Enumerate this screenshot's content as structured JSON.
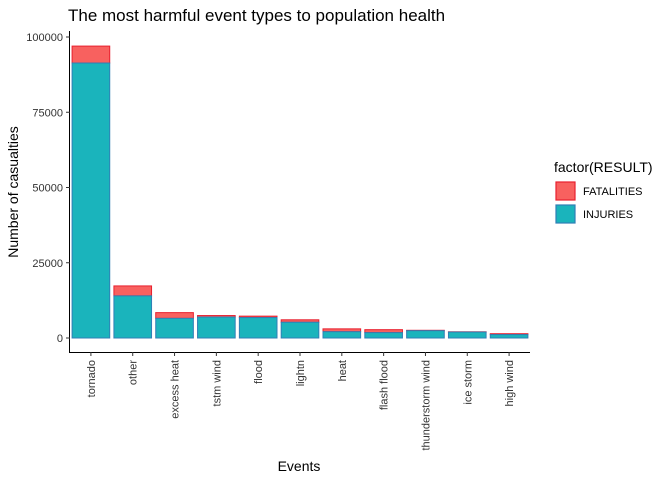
{
  "chart_data": {
    "type": "bar",
    "stacked": true,
    "title": "The most harmful event types to population health",
    "xlabel": "Events",
    "ylabel": "Number of casualties",
    "categories": [
      "tornado",
      "other",
      "excess heat",
      "tstm wind",
      "flood",
      "lightn",
      "heat",
      "flash flood",
      "thunderstorm wind",
      "ice storm",
      "high wind"
    ],
    "series": [
      {
        "name": "INJURIES",
        "values": [
          91350,
          14000,
          6530,
          6960,
          6790,
          5230,
          2100,
          1790,
          2430,
          1980,
          1140
        ],
        "fill": "#1AB4BC",
        "stroke": "#2F7FB6"
      },
      {
        "name": "FATALITIES",
        "values": [
          5630,
          3300,
          1900,
          500,
          470,
          820,
          940,
          980,
          130,
          90,
          290
        ],
        "fill": "#F8615F",
        "stroke": "#E8202E"
      }
    ],
    "ylim": [
      0,
      100000
    ],
    "yticks": [
      0,
      25000,
      50000,
      75000,
      100000
    ],
    "grid": false,
    "legend": {
      "title": "factor(RESULT)",
      "position": "right",
      "entries": [
        "FATALITIES",
        "INJURIES"
      ]
    }
  }
}
